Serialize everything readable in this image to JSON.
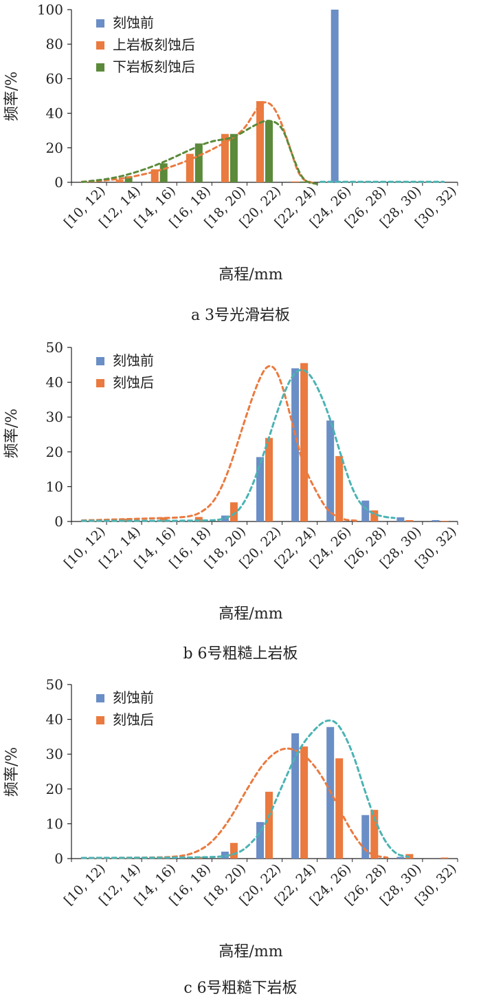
{
  "chart_data": [
    {
      "type": "bar",
      "panel_caption": "a  3号光滑岩板",
      "xlabel": "高程/mm",
      "ylabel": "频率/%",
      "ylim": [
        0,
        100
      ],
      "yticks": [
        0,
        20,
        40,
        60,
        80,
        100
      ],
      "categories": [
        "[10, 12)",
        "[12, 14)",
        "[14, 16)",
        "[16, 18)",
        "[18, 20)",
        "[20, 22)",
        "[22, 24)",
        "[24, 26)",
        "[26, 28)",
        "[28, 30)",
        "[30, 32)"
      ],
      "legend_position": "top-left",
      "series": [
        {
          "name": "刻蚀前",
          "color": "#6a8ec6",
          "values": [
            0,
            0,
            0,
            0,
            0,
            0,
            0,
            100,
            0,
            0,
            0
          ]
        },
        {
          "name": "上岩板刻蚀后",
          "color": "#ea7a3f",
          "values": [
            0.3,
            1.5,
            7.5,
            16.5,
            28,
            47,
            0.5,
            0,
            0,
            0,
            0
          ]
        },
        {
          "name": "下岩板刻蚀后",
          "color": "#5b8a3a",
          "values": [
            0.2,
            3.5,
            11,
            22.5,
            28,
            35.5,
            0.5,
            0,
            0,
            0,
            0
          ]
        }
      ],
      "trendlines": [
        {
          "series": "上岩板刻蚀后",
          "color": "#ea7a3f",
          "points": [
            [
              0.3,
              0.3
            ],
            [
              1.3,
              1.5
            ],
            [
              2.4,
              6
            ],
            [
              3.4,
              13
            ],
            [
              4.4,
              23
            ],
            [
              4.9,
              30
            ],
            [
              5.2,
              40
            ],
            [
              5.45,
              47.5
            ],
            [
              5.8,
              44
            ],
            [
              6.2,
              22
            ],
            [
              6.5,
              2
            ],
            [
              6.9,
              -0.5
            ]
          ]
        },
        {
          "series": "下岩板刻蚀后",
          "color": "#5b8a3a",
          "points": [
            [
              0.3,
              0.2
            ],
            [
              1.3,
              2.5
            ],
            [
              2.4,
              9.5
            ],
            [
              3.5,
              20
            ],
            [
              4.0,
              24
            ],
            [
              4.6,
              25.5
            ],
            [
              5.2,
              33
            ],
            [
              5.6,
              36.5
            ],
            [
              6.0,
              33
            ],
            [
              6.3,
              15
            ],
            [
              6.6,
              0.5
            ],
            [
              7.0,
              -1
            ]
          ]
        },
        {
          "series": "刻蚀前",
          "color": "#4bb3b3",
          "points": [
            [
              7.1,
              0.3
            ],
            [
              10.6,
              0.3
            ]
          ]
        }
      ]
    },
    {
      "type": "bar",
      "panel_caption": "b  6号粗糙上岩板",
      "xlabel": "高程/mm",
      "ylabel": "频率/%",
      "ylim": [
        0,
        50
      ],
      "yticks": [
        0,
        10,
        20,
        30,
        40,
        50
      ],
      "categories": [
        "[10, 12)",
        "[12, 14)",
        "[14, 16)",
        "[16, 18)",
        "[18, 20)",
        "[20, 22)",
        "[22, 24)",
        "[24, 26)",
        "[26, 28)",
        "[28, 30)",
        "[30, 32)"
      ],
      "legend_position": "top-left",
      "series": [
        {
          "name": "刻蚀前",
          "color": "#6a8ec6",
          "values": [
            0,
            0,
            0,
            0,
            1.7,
            18.5,
            44,
            29,
            6,
            1.2,
            0.4
          ]
        },
        {
          "name": "刻蚀后",
          "color": "#ea7a3f",
          "values": [
            0.2,
            0.8,
            1.2,
            1.3,
            5.5,
            24,
            45.5,
            18.8,
            3.2,
            0.4,
            0.2
          ]
        }
      ],
      "trendlines": [
        {
          "series": "刻蚀后",
          "color": "#ea7a3f",
          "points": [
            [
              0.3,
              0.3
            ],
            [
              1.3,
              0.6
            ],
            [
              2.3,
              0.9
            ],
            [
              3.3,
              1.2
            ],
            [
              3.7,
              2.5
            ],
            [
              4.1,
              6
            ],
            [
              4.5,
              15
            ],
            [
              4.9,
              28
            ],
            [
              5.3,
              40
            ],
            [
              5.6,
              45.5
            ],
            [
              5.9,
              43
            ],
            [
              6.3,
              28
            ],
            [
              6.6,
              16
            ],
            [
              7.0,
              8
            ],
            [
              7.3,
              3
            ],
            [
              7.7,
              0.5
            ],
            [
              8.2,
              0.2
            ]
          ]
        },
        {
          "series": "刻蚀前",
          "color": "#4bb3b3",
          "points": [
            [
              0.3,
              0.2
            ],
            [
              3.5,
              0.2
            ],
            [
              4.5,
              0.5
            ],
            [
              5.0,
              6
            ],
            [
              5.5,
              20
            ],
            [
              6.0,
              36
            ],
            [
              6.4,
              44
            ],
            [
              6.8,
              43
            ],
            [
              7.3,
              32
            ],
            [
              7.7,
              18
            ],
            [
              8.1,
              6.5
            ],
            [
              8.5,
              2.5
            ],
            [
              8.9,
              1.3
            ],
            [
              9.2,
              1
            ]
          ]
        }
      ]
    },
    {
      "type": "bar",
      "panel_caption": "c  6号粗糙下岩板",
      "xlabel": "高程/mm",
      "ylabel": "频率/%",
      "ylim": [
        0,
        50
      ],
      "yticks": [
        0,
        10,
        20,
        30,
        40,
        50
      ],
      "categories": [
        "[10, 12)",
        "[12, 14)",
        "[14, 16)",
        "[16, 18)",
        "[18, 20)",
        "[20, 22)",
        "[22, 24)",
        "[24, 26)",
        "[26, 28)",
        "[28, 30)",
        "[30, 32)"
      ],
      "legend_position": "top-left",
      "series": [
        {
          "name": "刻蚀前",
          "color": "#6a8ec6",
          "values": [
            0,
            0,
            0,
            0,
            2,
            10.5,
            36,
            37.8,
            12.5,
            0.5,
            0
          ]
        },
        {
          "name": "刻蚀后",
          "color": "#ea7a3f",
          "values": [
            0.2,
            0.2,
            0.3,
            0.5,
            4.5,
            19.2,
            32.2,
            28.8,
            14,
            1.3,
            0.3
          ]
        }
      ],
      "trendlines": [
        {
          "series": "刻蚀后",
          "color": "#ea7a3f",
          "points": [
            [
              0.3,
              0.2
            ],
            [
              1.3,
              0.2
            ],
            [
              2.3,
              0.3
            ],
            [
              3.0,
              0.5
            ],
            [
              3.5,
              1.5
            ],
            [
              4.0,
              4.5
            ],
            [
              4.5,
              11
            ],
            [
              5.0,
              20
            ],
            [
              5.5,
              28
            ],
            [
              6.0,
              32
            ],
            [
              6.5,
              31
            ],
            [
              7.0,
              26
            ],
            [
              7.5,
              17
            ],
            [
              7.9,
              9
            ],
            [
              8.3,
              3
            ],
            [
              8.6,
              0.8
            ],
            [
              9.0,
              0.3
            ]
          ]
        },
        {
          "series": "刻蚀前",
          "color": "#4bb3b3",
          "points": [
            [
              0.3,
              0.2
            ],
            [
              4.0,
              0.3
            ],
            [
              4.6,
              1
            ],
            [
              5.0,
              3
            ],
            [
              5.5,
              9
            ],
            [
              6.0,
              21
            ],
            [
              6.5,
              32
            ],
            [
              7.0,
              38
            ],
            [
              7.3,
              40
            ],
            [
              7.6,
              39
            ],
            [
              8.0,
              31
            ],
            [
              8.4,
              18
            ],
            [
              8.8,
              7
            ],
            [
              9.2,
              1.3
            ],
            [
              9.6,
              0.5
            ]
          ]
        }
      ]
    }
  ]
}
